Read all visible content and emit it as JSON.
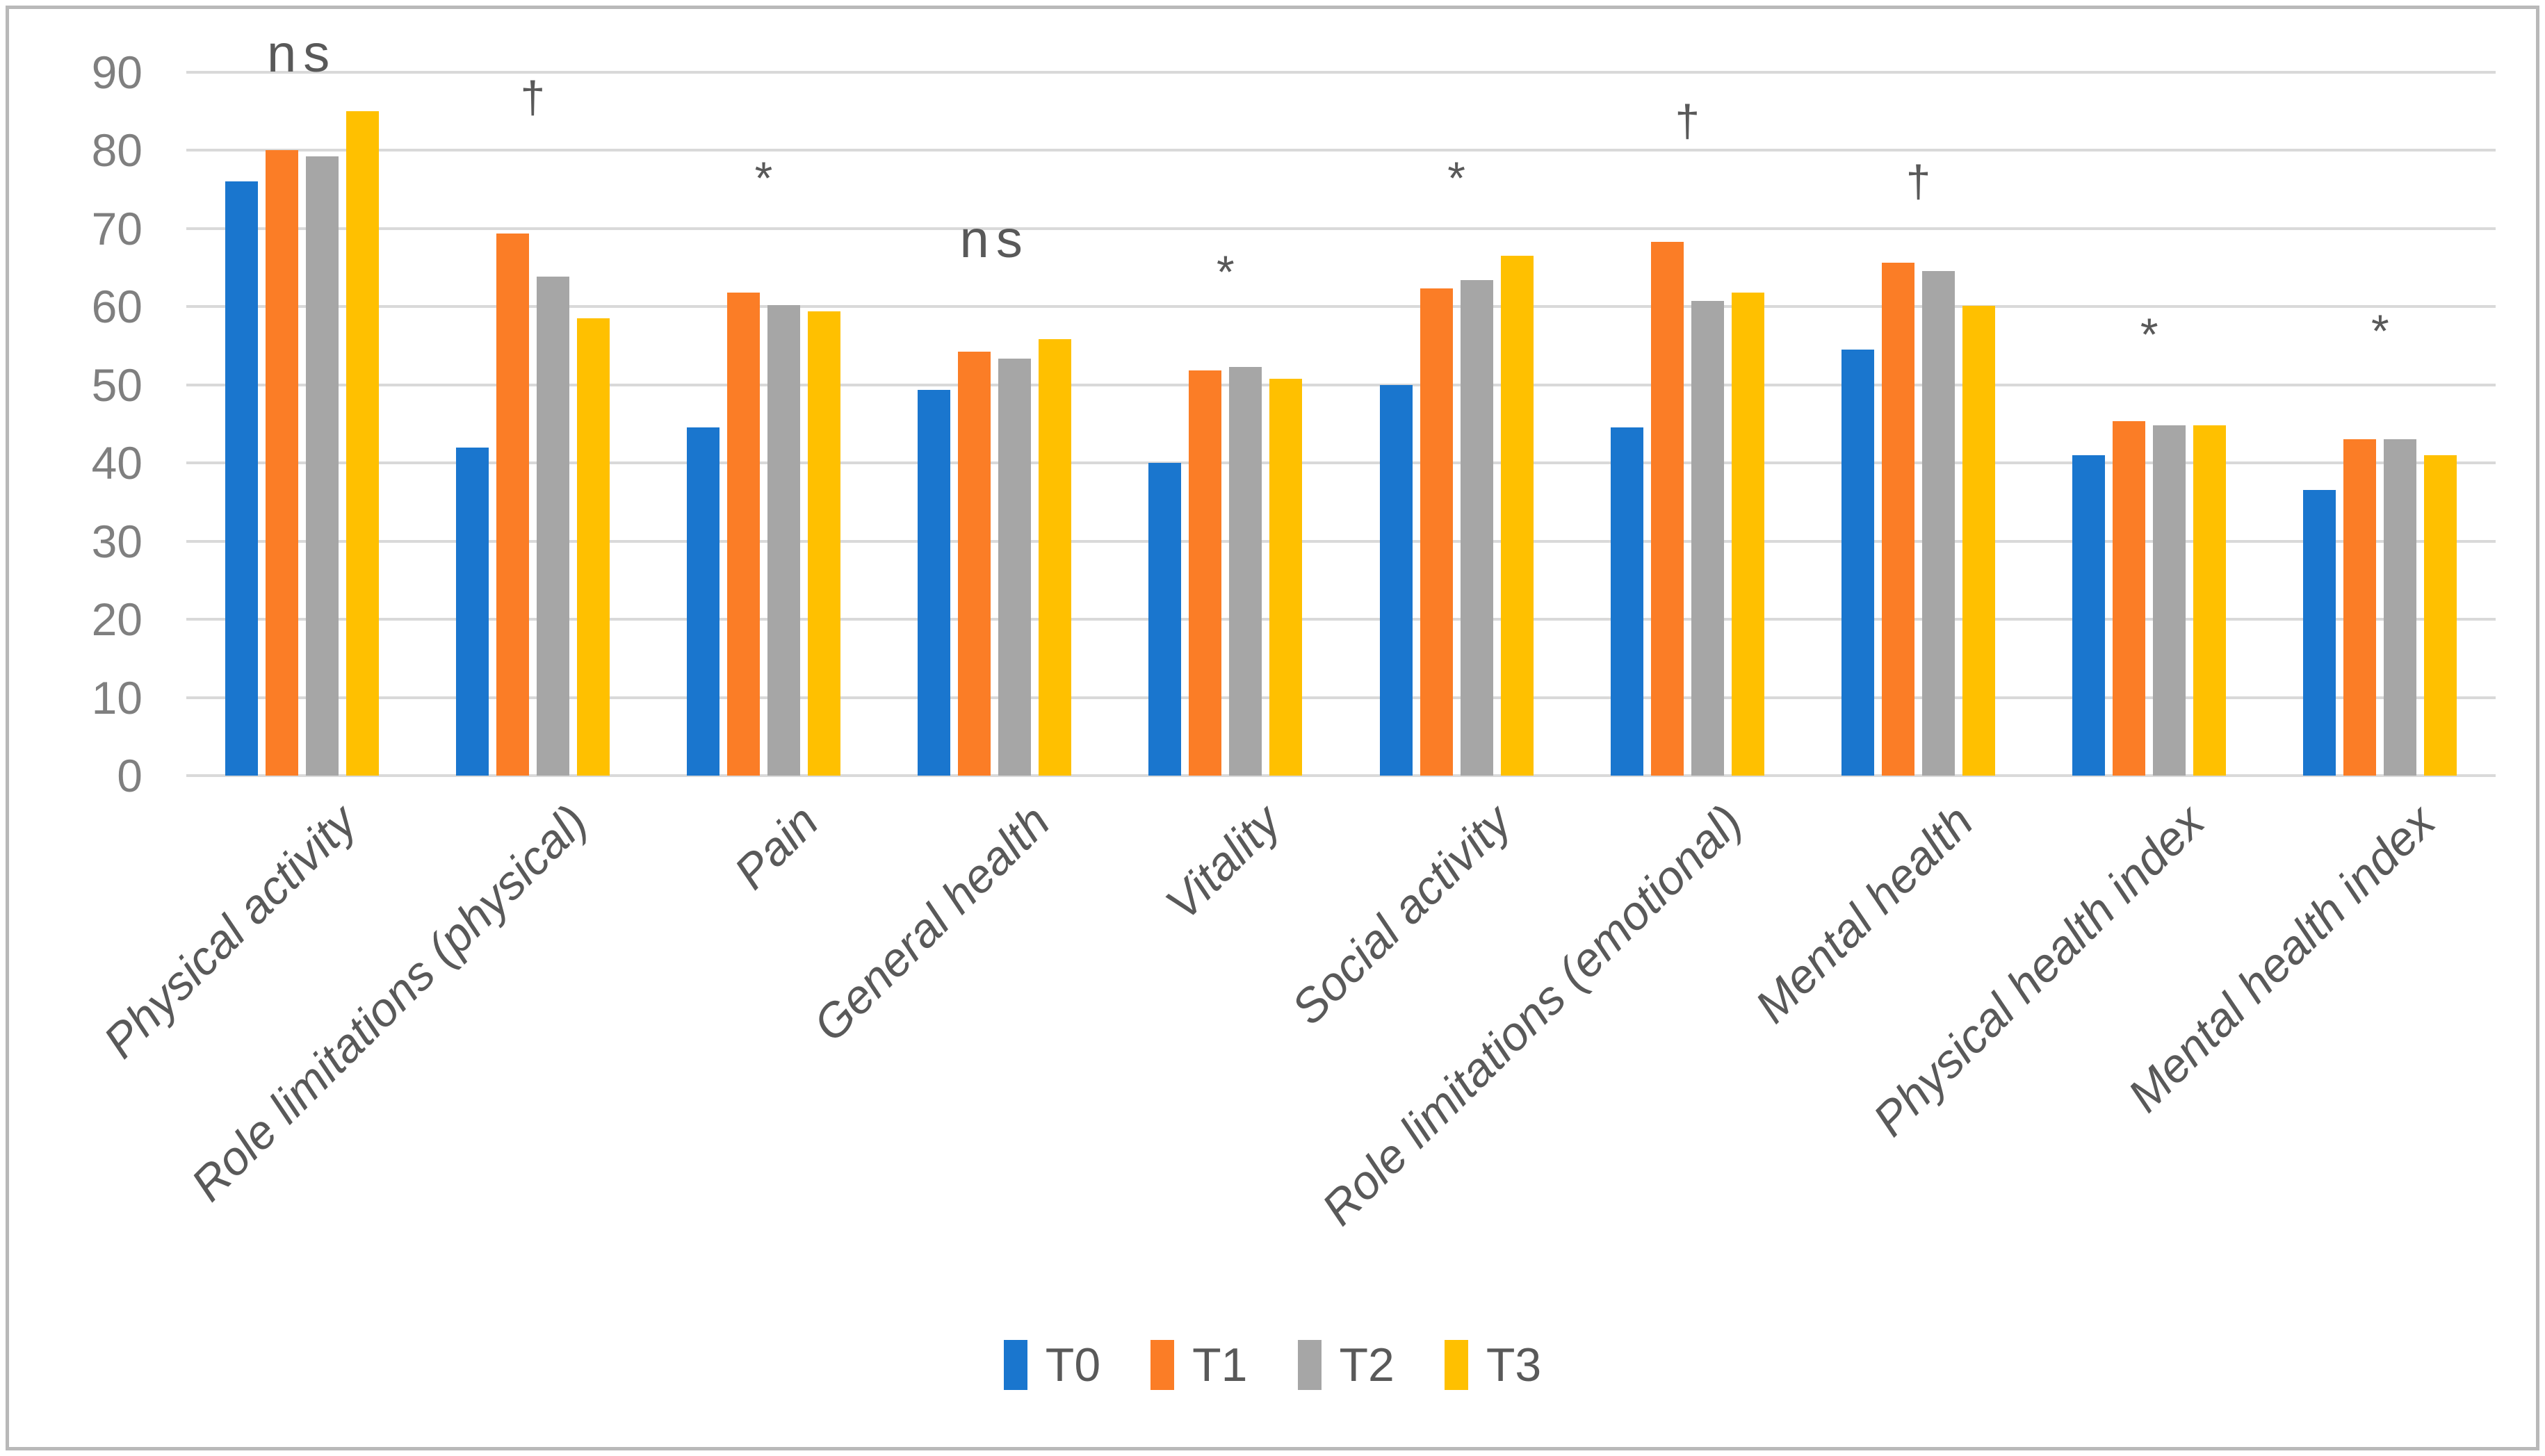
{
  "figure": {
    "kind": "grouped-column-chart",
    "background": "#FFFFFF",
    "border_color": "#B9B9B9"
  },
  "colors": {
    "grid": "#D9D9D9",
    "tick_text": "#7F7F7F",
    "label_text": "#595959"
  },
  "chart_data": {
    "type": "bar",
    "title": "",
    "xlabel": "",
    "ylabel": "",
    "ylim": [
      0,
      90
    ],
    "ytick_step": 10,
    "grid": true,
    "legend_position": "bottom",
    "categories": [
      "Physical activity",
      "Role limitations (physical)",
      "Pain",
      "General health",
      "Vitality",
      "Social activity",
      "Role limitations (emotional)",
      "Mental health",
      "Physical health index",
      "Mental health index"
    ],
    "series": [
      {
        "name": "T0",
        "color": "#1A76CE",
        "values": [
          76,
          42,
          44.5,
          49.3,
          40,
          50,
          44.5,
          54.5,
          41,
          36.5
        ]
      },
      {
        "name": "T1",
        "color": "#FB7D26",
        "values": [
          80,
          69.3,
          61.8,
          54.2,
          51.8,
          62.3,
          68.3,
          65.6,
          45.3,
          43
        ]
      },
      {
        "name": "T2",
        "color": "#A6A6A6",
        "values": [
          79.2,
          63.8,
          60.2,
          53.3,
          52.3,
          63.4,
          60.7,
          64.5,
          44.8,
          43
        ]
      },
      {
        "name": "T3",
        "color": "#FFC000",
        "values": [
          85,
          58.5,
          59.4,
          55.8,
          50.8,
          66.5,
          61.8,
          60.1,
          44.8,
          41
        ]
      }
    ],
    "annotations": [
      {
        "symbol": "ns",
        "y": 92.3
      },
      {
        "symbol": "†",
        "y": 86.8
      },
      {
        "symbol": "*",
        "y": 77.5
      },
      {
        "symbol": "ns",
        "y": 68.5
      },
      {
        "symbol": "*",
        "y": 65.5
      },
      {
        "symbol": "*",
        "y": 77.5
      },
      {
        "symbol": "†",
        "y": 83.7
      },
      {
        "symbol": "†",
        "y": 76
      },
      {
        "symbol": "*",
        "y": 57.5
      },
      {
        "symbol": "*",
        "y": 58
      }
    ]
  }
}
